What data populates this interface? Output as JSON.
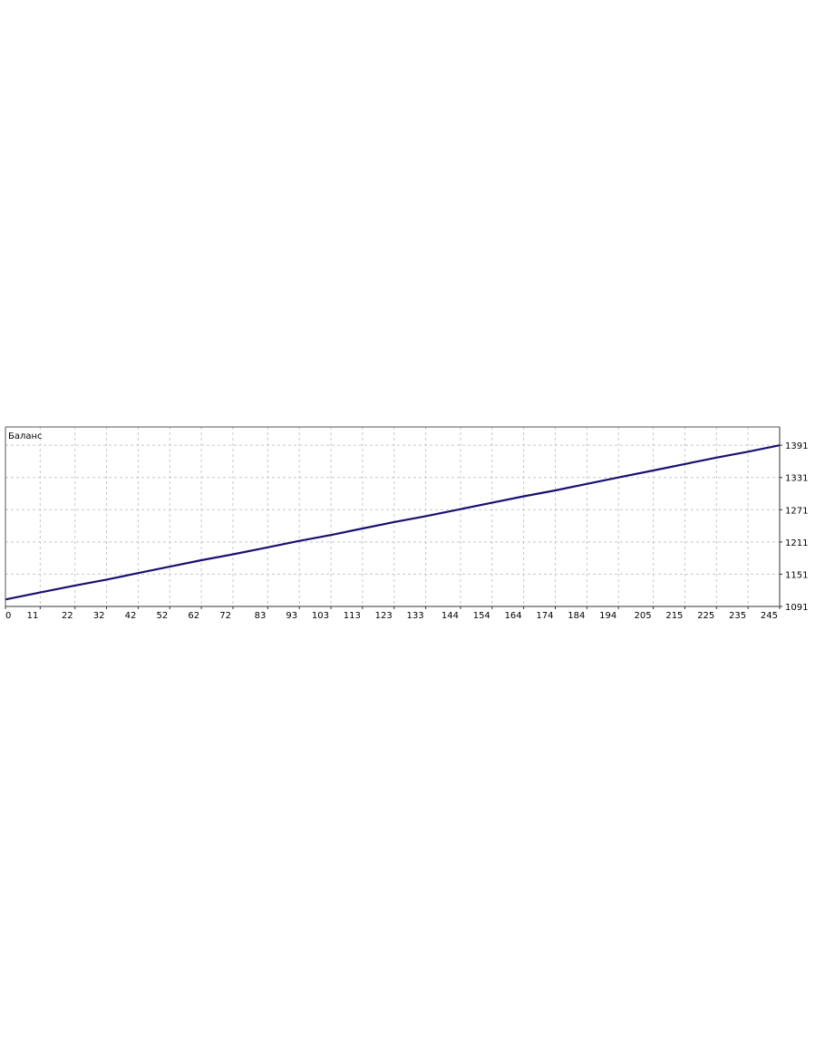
{
  "chart_data": {
    "type": "line",
    "title": "Баланс",
    "xlabel": "",
    "ylabel": "",
    "xlim": [
      0,
      245
    ],
    "ylim": [
      1091,
      1425
    ],
    "grid": true,
    "x_ticks": [
      0,
      11,
      22,
      32,
      42,
      52,
      62,
      72,
      83,
      93,
      103,
      113,
      123,
      133,
      144,
      154,
      164,
      174,
      184,
      194,
      205,
      215,
      225,
      235,
      245
    ],
    "y_ticks": [
      1091,
      1151,
      1211,
      1271,
      1331,
      1391
    ],
    "y_axis_side": "right",
    "series": [
      {
        "color": "#1a1070",
        "x": [
          0,
          11,
          22,
          32,
          42,
          52,
          62,
          72,
          83,
          93,
          103,
          113,
          123,
          133,
          144,
          154,
          164,
          174,
          184,
          194,
          205,
          215,
          225,
          235,
          245
        ],
        "y": [
          1104,
          1117,
          1130,
          1141,
          1153,
          1165,
          1177,
          1188,
          1201,
          1213,
          1224,
          1236,
          1248,
          1259,
          1272,
          1284,
          1296,
          1307,
          1319,
          1331,
          1344,
          1356,
          1368,
          1379,
          1391
        ]
      }
    ]
  }
}
